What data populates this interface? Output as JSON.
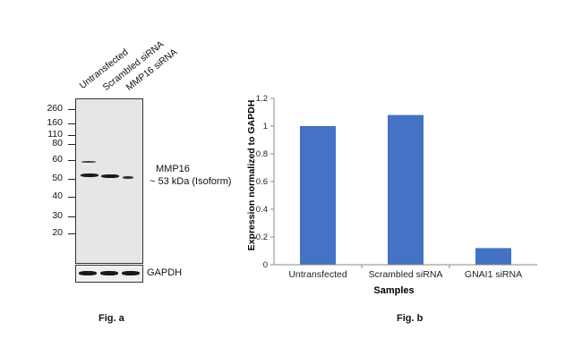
{
  "panel_a": {
    "lanes": [
      "Untransfected",
      "Scrambled siRNA",
      "MMP16 siRNA"
    ],
    "mw_markers": [
      "260",
      "160",
      "110",
      "80",
      "60",
      "50",
      "40",
      "30",
      "20"
    ],
    "target_label": "MMP16",
    "target_size": "~ 53 kDa  (Isoform)",
    "loading_control": "GAPDH",
    "fig_label": "Fig. a"
  },
  "panel_b": {
    "fig_label": "Fig. b"
  },
  "chart_data": {
    "type": "bar",
    "categories": [
      "Untransfected",
      "Scrambled siRNA",
      "GNAI1 siRNA"
    ],
    "values": [
      1.0,
      1.08,
      0.12
    ],
    "title": "",
    "xlabel": "Samples",
    "ylabel": "Expression normalized to GAPDH",
    "ylim": [
      0,
      1.2
    ],
    "yticks": [
      "0",
      "0.2",
      "0.4",
      "0.6",
      "0.8",
      "1",
      "1.2"
    ],
    "bar_color": "#4472c4",
    "grid": false
  }
}
